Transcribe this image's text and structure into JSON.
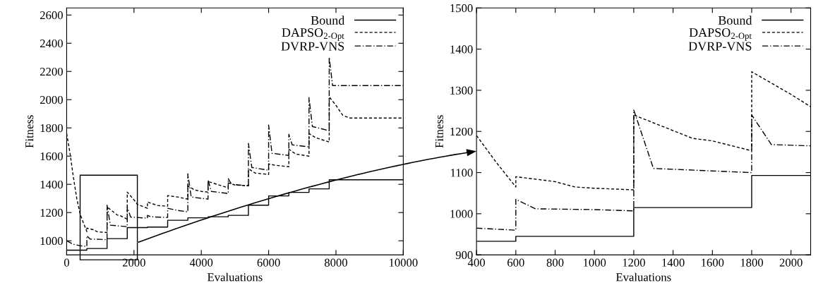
{
  "chart_data": [
    {
      "type": "line",
      "xlabel": "Evaluations",
      "ylabel": "Fitness",
      "xlim": [
        0,
        10000
      ],
      "xticks": [
        0,
        2000,
        4000,
        6000,
        8000,
        10000
      ],
      "ylim": [
        900,
        2650
      ],
      "yticks": [
        1000,
        1200,
        1400,
        1600,
        1800,
        2000,
        2200,
        2400,
        2600
      ],
      "legend": "top right",
      "grid": false,
      "series": [
        {
          "name": "Bound",
          "type": "step",
          "color": "#000000",
          "line_style": "solid",
          "x": [
            0,
            600,
            1200,
            1800,
            2400,
            3000,
            3600,
            4200,
            4800,
            5400,
            6000,
            6600,
            7200,
            7800,
            10000
          ],
          "values": [
            933,
            945,
            1015,
            1093,
            1097,
            1145,
            1163,
            1170,
            1180,
            1252,
            1318,
            1343,
            1368,
            1432,
            1432
          ]
        },
        {
          "name": "DAPSO$_{2-Opt}$",
          "color": "#000000",
          "line_style": "dashed",
          "x": [
            0,
            100,
            200,
            300,
            400,
            500,
            600,
            600,
            800,
            900,
            1000,
            1200,
            1200,
            1500,
            1600,
            1800,
            1800,
            2000,
            2100,
            2400,
            2400,
            2700,
            3000,
            3000,
            3300,
            3600,
            3600,
            3800,
            4000,
            4200,
            4200,
            4800,
            4800,
            5000,
            5400,
            5400,
            5600,
            6000,
            6000,
            6200,
            6600,
            6600,
            6800,
            7200,
            7200,
            7400,
            7800,
            7800,
            8000,
            8200,
            8400,
            10000
          ],
          "values": [
            1760,
            1620,
            1450,
            1300,
            1190,
            1125,
            1065,
            1090,
            1078,
            1065,
            1062,
            1058,
            1240,
            1183,
            1177,
            1153,
            1345,
            1290,
            1258,
            1230,
            1275,
            1250,
            1245,
            1320,
            1310,
            1295,
            1390,
            1360,
            1350,
            1345,
            1420,
            1375,
            1410,
            1395,
            1390,
            1510,
            1480,
            1470,
            1545,
            1535,
            1525,
            1650,
            1615,
            1600,
            1760,
            1730,
            1700,
            2020,
            1960,
            1890,
            1870,
            1870
          ]
        },
        {
          "name": "DVRP-VNS",
          "color": "#000000",
          "line_style": "dashdot",
          "x": [
            0,
            200,
            400,
            600,
            600,
            700,
            1000,
            1200,
            1200,
            1300,
            1600,
            1800,
            1800,
            1900,
            2100,
            2400,
            2400,
            2500,
            3000,
            3000,
            3300,
            3600,
            3600,
            3700,
            4200,
            4200,
            4300,
            4800,
            4800,
            4900,
            5400,
            5400,
            5500,
            6000,
            6000,
            6100,
            6600,
            6600,
            6700,
            7200,
            7200,
            7300,
            7800,
            7800,
            7900,
            10000
          ],
          "values": [
            1000,
            975,
            965,
            960,
            1035,
            1012,
            1010,
            1007,
            1252,
            1110,
            1104,
            1100,
            1240,
            1168,
            1165,
            1160,
            1180,
            1170,
            1165,
            1230,
            1215,
            1205,
            1475,
            1310,
            1295,
            1430,
            1350,
            1335,
            1440,
            1400,
            1390,
            1690,
            1520,
            1500,
            1820,
            1620,
            1605,
            1755,
            1680,
            1665,
            2015,
            1810,
            1780,
            2300,
            2100,
            2100
          ]
        }
      ]
    },
    {
      "type": "line",
      "xlabel": "Evaluations",
      "ylabel": "Fitness",
      "xlim": [
        400,
        2100
      ],
      "xticks": [
        400,
        600,
        800,
        1000,
        1200,
        1400,
        1600,
        1800,
        2000
      ],
      "ylim": [
        900,
        1500
      ],
      "yticks": [
        900,
        1000,
        1100,
        1200,
        1300,
        1400,
        1500
      ],
      "legend": "top right",
      "grid": false,
      "series": [
        {
          "name": "Bound",
          "type": "step",
          "color": "#000000",
          "line_style": "solid",
          "x": [
            400,
            600,
            1200,
            1800,
            2100
          ],
          "values": [
            933,
            945,
            1015,
            1093,
            1093
          ]
        },
        {
          "name": "DAPSO$_{2-Opt}$",
          "color": "#000000",
          "line_style": "dashed",
          "x": [
            400,
            500,
            600,
            600,
            800,
            900,
            1000,
            1200,
            1200,
            1500,
            1600,
            1800,
            1800,
            2000,
            2100
          ],
          "values": [
            1190,
            1125,
            1065,
            1090,
            1078,
            1065,
            1062,
            1058,
            1240,
            1183,
            1177,
            1153,
            1345,
            1290,
            1260
          ]
        },
        {
          "name": "DVRP-VNS",
          "color": "#000000",
          "line_style": "dashdot",
          "x": [
            400,
            600,
            600,
            700,
            1000,
            1200,
            1200,
            1300,
            1600,
            1800,
            1800,
            1900,
            2100
          ],
          "values": [
            965,
            960,
            1035,
            1012,
            1010,
            1007,
            1252,
            1110,
            1104,
            1100,
            1240,
            1168,
            1165
          ]
        }
      ]
    }
  ]
}
